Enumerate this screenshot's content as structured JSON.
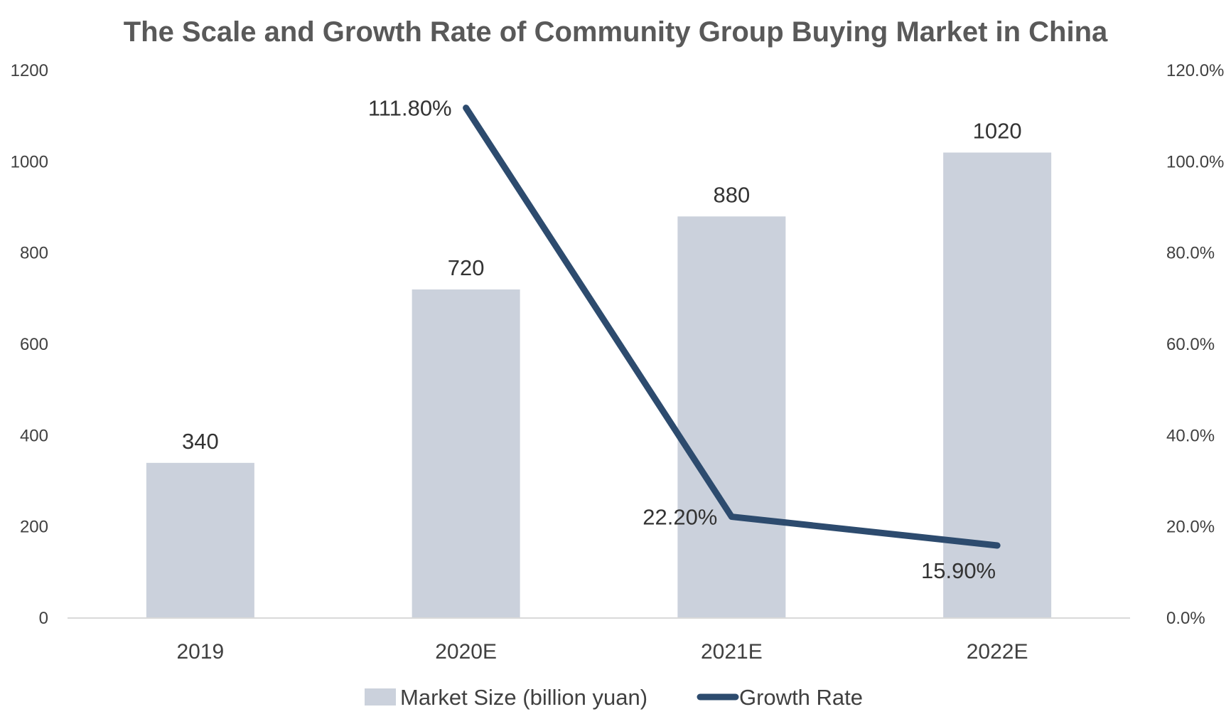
{
  "chart_data": {
    "type": "bar",
    "title": "The Scale and Growth Rate of Community Group Buying Market in China",
    "categories": [
      "2019",
      "2020E",
      "2021E",
      "2022E"
    ],
    "series": [
      {
        "name": "Market Size (billion yuan)",
        "kind": "bar",
        "axis": "left",
        "values": [
          340,
          720,
          880,
          1020
        ],
        "labels": [
          "340",
          "720",
          "880",
          "1020"
        ],
        "color": "#cbd1dc"
      },
      {
        "name": "Growth Rate",
        "kind": "line",
        "axis": "right",
        "values": [
          null,
          111.8,
          22.2,
          15.9
        ],
        "labels": [
          "",
          "111.80%",
          "22.20%",
          "15.90%"
        ],
        "color": "#2d4b6e"
      }
    ],
    "y_left": {
      "min": 0,
      "max": 1200,
      "ticks": [
        "0",
        "200",
        "400",
        "600",
        "800",
        "1000",
        "1200"
      ]
    },
    "y_right": {
      "min": 0,
      "max": 120,
      "ticks": [
        "0.0%",
        "20.0%",
        "40.0%",
        "60.0%",
        "80.0%",
        "100.0%",
        "120.0%"
      ]
    },
    "grid": false,
    "legend_position": "bottom"
  }
}
